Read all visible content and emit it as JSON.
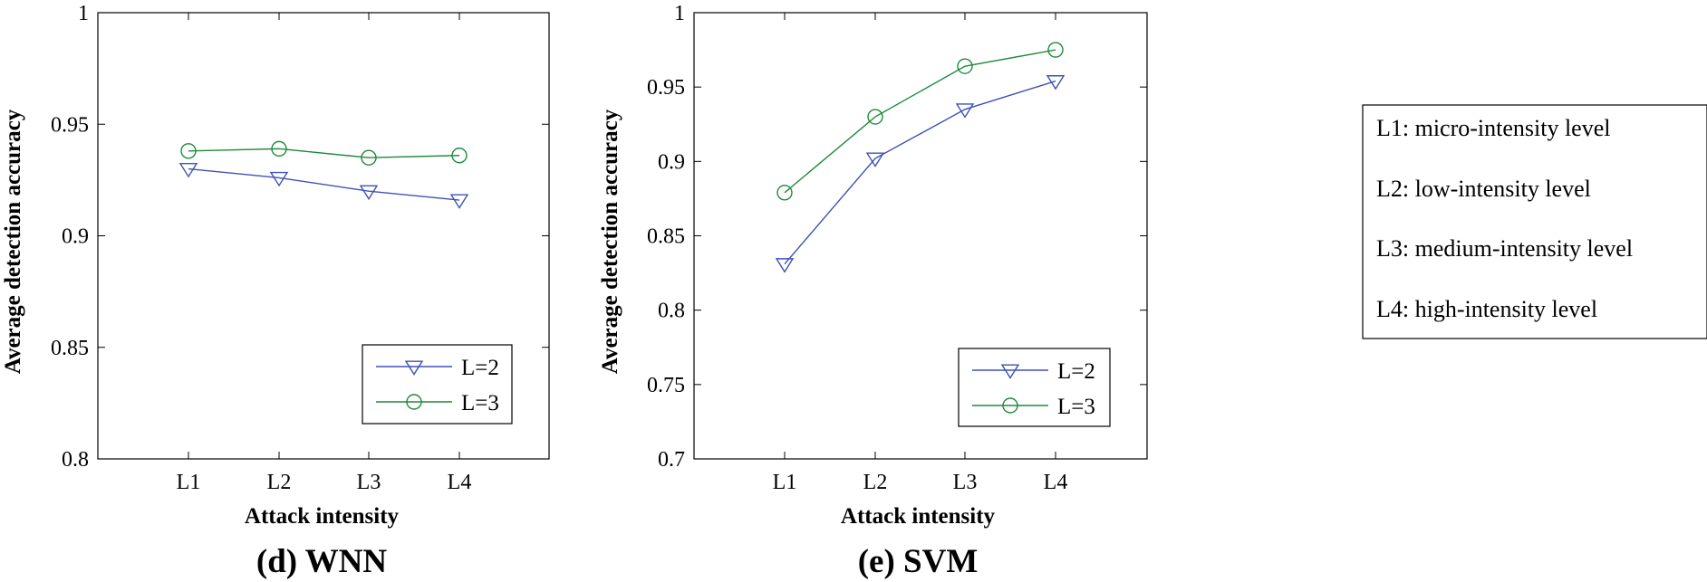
{
  "chart_data": [
    {
      "type": "line",
      "caption": "(d) WNN",
      "xlabel": "Attack intensity",
      "ylabel": "Average detection accuracy",
      "categories": [
        "L1",
        "L2",
        "L3",
        "L4"
      ],
      "ylim": [
        0.8,
        1
      ],
      "yticks": [
        0.8,
        0.85,
        0.9,
        0.95,
        1
      ],
      "ytick_labels": [
        "0.8",
        "0.85",
        "0.9",
        "0.95",
        "1"
      ],
      "series": [
        {
          "name": "L=2",
          "marker": "triangle-down",
          "color": "#3f51b5",
          "values": [
            0.93,
            0.926,
            0.92,
            0.916
          ]
        },
        {
          "name": "L=3",
          "marker": "circle",
          "color": "#1e8a3c",
          "values": [
            0.938,
            0.939,
            0.935,
            0.936
          ]
        }
      ],
      "legend": "bottom-right"
    },
    {
      "type": "line",
      "caption": "(e) SVM",
      "xlabel": "Attack intensity",
      "ylabel": "Average detection accuracy",
      "categories": [
        "L1",
        "L2",
        "L3",
        "L4"
      ],
      "ylim": [
        0.7,
        1
      ],
      "yticks": [
        0.7,
        0.75,
        0.8,
        0.85,
        0.9,
        0.95,
        1
      ],
      "ytick_labels": [
        "0.7",
        "0.75",
        "0.8",
        "0.85",
        "0.9",
        "0.95",
        "1"
      ],
      "series": [
        {
          "name": "L=2",
          "marker": "triangle-down",
          "color": "#3f51b5",
          "values": [
            0.831,
            0.902,
            0.935,
            0.954
          ]
        },
        {
          "name": "L=3",
          "marker": "circle",
          "color": "#1e8a3c",
          "values": [
            0.879,
            0.93,
            0.964,
            0.975
          ]
        }
      ],
      "legend": "bottom-right"
    }
  ],
  "intensity_note": {
    "items": [
      "L1: micro-intensity level",
      "L2: low-intensity level",
      "L3: medium-intensity level",
      "L4: high-intensity level"
    ]
  }
}
